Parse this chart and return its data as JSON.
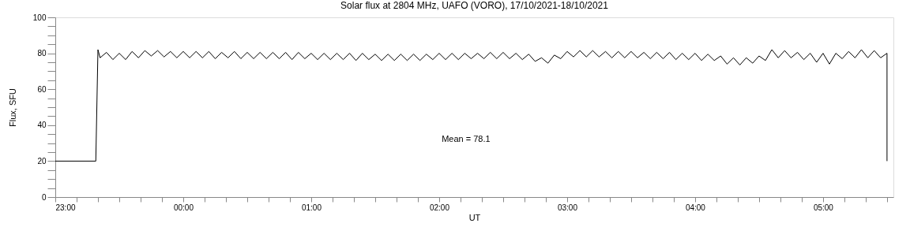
{
  "chart_data": {
    "type": "line",
    "title": "Solar flux at 2804 MHz, UAFO (VORO),  17/10/2021-18/10/2021",
    "xlabel": "UT",
    "ylabel": "Flux, SFU",
    "color": "#000000",
    "x": [
      "2021-10-17T23:00",
      "2021-10-17T23:19",
      "2021-10-17T23:20",
      "2021-10-17T23:21",
      "2021-10-17T23:24",
      "2021-10-17T23:27",
      "2021-10-17T23:30",
      "2021-10-17T23:33",
      "2021-10-17T23:36",
      "2021-10-17T23:39",
      "2021-10-17T23:42",
      "2021-10-17T23:45",
      "2021-10-17T23:48",
      "2021-10-17T23:51",
      "2021-10-17T23:54",
      "2021-10-17T23:57",
      "2021-10-18T00:00",
      "2021-10-18T00:03",
      "2021-10-18T00:06",
      "2021-10-18T00:09",
      "2021-10-18T00:12",
      "2021-10-18T00:15",
      "2021-10-18T00:18",
      "2021-10-18T00:21",
      "2021-10-18T00:24",
      "2021-10-18T00:27",
      "2021-10-18T00:30",
      "2021-10-18T00:33",
      "2021-10-18T00:36",
      "2021-10-18T00:39",
      "2021-10-18T00:42",
      "2021-10-18T00:45",
      "2021-10-18T00:48",
      "2021-10-18T00:51",
      "2021-10-18T00:54",
      "2021-10-18T00:57",
      "2021-10-18T01:00",
      "2021-10-18T01:03",
      "2021-10-18T01:06",
      "2021-10-18T01:09",
      "2021-10-18T01:12",
      "2021-10-18T01:15",
      "2021-10-18T01:18",
      "2021-10-18T01:21",
      "2021-10-18T01:24",
      "2021-10-18T01:27",
      "2021-10-18T01:30",
      "2021-10-18T01:33",
      "2021-10-18T01:36",
      "2021-10-18T01:39",
      "2021-10-18T01:42",
      "2021-10-18T01:45",
      "2021-10-18T01:48",
      "2021-10-18T01:51",
      "2021-10-18T01:54",
      "2021-10-18T01:57",
      "2021-10-18T02:00",
      "2021-10-18T02:03",
      "2021-10-18T02:06",
      "2021-10-18T02:09",
      "2021-10-18T02:12",
      "2021-10-18T02:15",
      "2021-10-18T02:18",
      "2021-10-18T02:21",
      "2021-10-18T02:24",
      "2021-10-18T02:27",
      "2021-10-18T02:30",
      "2021-10-18T02:33",
      "2021-10-18T02:36",
      "2021-10-18T02:39",
      "2021-10-18T02:42",
      "2021-10-18T02:45",
      "2021-10-18T02:48",
      "2021-10-18T02:51",
      "2021-10-18T02:54",
      "2021-10-18T02:57",
      "2021-10-18T03:00",
      "2021-10-18T03:03",
      "2021-10-18T03:06",
      "2021-10-18T03:09",
      "2021-10-18T03:12",
      "2021-10-18T03:15",
      "2021-10-18T03:18",
      "2021-10-18T03:21",
      "2021-10-18T03:24",
      "2021-10-18T03:27",
      "2021-10-18T03:30",
      "2021-10-18T03:33",
      "2021-10-18T03:36",
      "2021-10-18T03:39",
      "2021-10-18T03:42",
      "2021-10-18T03:45",
      "2021-10-18T03:48",
      "2021-10-18T03:51",
      "2021-10-18T03:54",
      "2021-10-18T03:57",
      "2021-10-18T04:00",
      "2021-10-18T04:03",
      "2021-10-18T04:06",
      "2021-10-18T04:09",
      "2021-10-18T04:12",
      "2021-10-18T04:15",
      "2021-10-18T04:18",
      "2021-10-18T04:21",
      "2021-10-18T04:24",
      "2021-10-18T04:27",
      "2021-10-18T04:30",
      "2021-10-18T04:33",
      "2021-10-18T04:36",
      "2021-10-18T04:39",
      "2021-10-18T04:42",
      "2021-10-18T04:45",
      "2021-10-18T04:48",
      "2021-10-18T04:51",
      "2021-10-18T04:54",
      "2021-10-18T04:57",
      "2021-10-18T05:00",
      "2021-10-18T05:03",
      "2021-10-18T05:06",
      "2021-10-18T05:09",
      "2021-10-18T05:12",
      "2021-10-18T05:15",
      "2021-10-18T05:18",
      "2021-10-18T05:21",
      "2021-10-18T05:24",
      "2021-10-18T05:27",
      "2021-10-18T05:30",
      "2021-10-18T05:30"
    ],
    "values": [
      20,
      20,
      82,
      77.5,
      80.5,
      76.5,
      80,
      76.5,
      81,
      77.5,
      81.5,
      78.5,
      81.5,
      78,
      81,
      77.5,
      81,
      77.5,
      81,
      77.5,
      81,
      77,
      80.5,
      77.5,
      81,
      77,
      80.5,
      77,
      80.5,
      77,
      80.5,
      77,
      80.5,
      76.5,
      80.5,
      77,
      80,
      76.5,
      80,
      76.5,
      80,
      76.5,
      80,
      76,
      80,
      76.5,
      79.5,
      76,
      79.5,
      76,
      79.5,
      76,
      79.5,
      76,
      79.5,
      76.5,
      80,
      76.5,
      80,
      76.5,
      80,
      77,
      80,
      77,
      80.5,
      77,
      80.5,
      77,
      80,
      76.5,
      79.5,
      75.5,
      77.5,
      74.5,
      79,
      77,
      81,
      78,
      81.5,
      78,
      81.5,
      78,
      81,
      77.5,
      81,
      77.5,
      81,
      77.5,
      80.5,
      77,
      80.5,
      77,
      80.5,
      76.5,
      80,
      76.5,
      80,
      76,
      79.5,
      76,
      78.5,
      74,
      77.5,
      73.5,
      77.5,
      74.5,
      78.5,
      76,
      82,
      77.5,
      81.5,
      77.5,
      80.5,
      76.5,
      80,
      75,
      80,
      74,
      80,
      77,
      81,
      77.5,
      82,
      77.5,
      81.5,
      77.5,
      80,
      20
    ],
    "xlim": [
      "2021-10-17T23:00",
      "2021-10-18T05:33"
    ],
    "xticks": [
      {
        "value": "2021-10-17T23:00",
        "label": "23:00"
      },
      {
        "value": "2021-10-17T23:10",
        "label": null
      },
      {
        "value": "2021-10-17T23:20",
        "label": null
      },
      {
        "value": "2021-10-17T23:30",
        "label": null
      },
      {
        "value": "2021-10-17T23:40",
        "label": null
      },
      {
        "value": "2021-10-17T23:50",
        "label": null
      },
      {
        "value": "2021-10-18T00:00",
        "label": "00:00"
      },
      {
        "value": "2021-10-18T00:10",
        "label": null
      },
      {
        "value": "2021-10-18T00:20",
        "label": null
      },
      {
        "value": "2021-10-18T00:30",
        "label": null
      },
      {
        "value": "2021-10-18T00:40",
        "label": null
      },
      {
        "value": "2021-10-18T00:50",
        "label": null
      },
      {
        "value": "2021-10-18T01:00",
        "label": "01:00"
      },
      {
        "value": "2021-10-18T01:10",
        "label": null
      },
      {
        "value": "2021-10-18T01:20",
        "label": null
      },
      {
        "value": "2021-10-18T01:30",
        "label": null
      },
      {
        "value": "2021-10-18T01:40",
        "label": null
      },
      {
        "value": "2021-10-18T01:50",
        "label": null
      },
      {
        "value": "2021-10-18T02:00",
        "label": "02:00"
      },
      {
        "value": "2021-10-18T02:10",
        "label": null
      },
      {
        "value": "2021-10-18T02:20",
        "label": null
      },
      {
        "value": "2021-10-18T02:30",
        "label": null
      },
      {
        "value": "2021-10-18T02:40",
        "label": null
      },
      {
        "value": "2021-10-18T02:50",
        "label": null
      },
      {
        "value": "2021-10-18T03:00",
        "label": "03:00"
      },
      {
        "value": "2021-10-18T03:10",
        "label": null
      },
      {
        "value": "2021-10-18T03:20",
        "label": null
      },
      {
        "value": "2021-10-18T03:30",
        "label": null
      },
      {
        "value": "2021-10-18T03:40",
        "label": null
      },
      {
        "value": "2021-10-18T03:50",
        "label": null
      },
      {
        "value": "2021-10-18T04:00",
        "label": "04:00"
      },
      {
        "value": "2021-10-18T04:10",
        "label": null
      },
      {
        "value": "2021-10-18T04:20",
        "label": null
      },
      {
        "value": "2021-10-18T04:30",
        "label": null
      },
      {
        "value": "2021-10-18T04:40",
        "label": null
      },
      {
        "value": "2021-10-18T04:50",
        "label": null
      },
      {
        "value": "2021-10-18T05:00",
        "label": "05:00"
      },
      {
        "value": "2021-10-18T05:10",
        "label": null
      },
      {
        "value": "2021-10-18T05:20",
        "label": null
      },
      {
        "value": "2021-10-18T05:30",
        "label": null
      }
    ],
    "ylim": [
      0,
      100
    ],
    "yticks": [
      0,
      {
        "value": 5,
        "label": null
      },
      {
        "value": 10,
        "label": null
      },
      {
        "value": 15,
        "label": null
      },
      20,
      {
        "value": 25,
        "label": null
      },
      {
        "value": 30,
        "label": null
      },
      {
        "value": 35,
        "label": null
      },
      40,
      {
        "value": 45,
        "label": null
      },
      {
        "value": 50,
        "label": null
      },
      {
        "value": 55,
        "label": null
      },
      60,
      {
        "value": 65,
        "label": null
      },
      {
        "value": 70,
        "label": null
      },
      {
        "value": 75,
        "label": null
      },
      80,
      {
        "value": 85,
        "label": null
      },
      {
        "value": 90,
        "label": null
      },
      {
        "value": 95,
        "label": null
      },
      100
    ],
    "annotations": [
      "Mean =   78.1"
    ]
  }
}
